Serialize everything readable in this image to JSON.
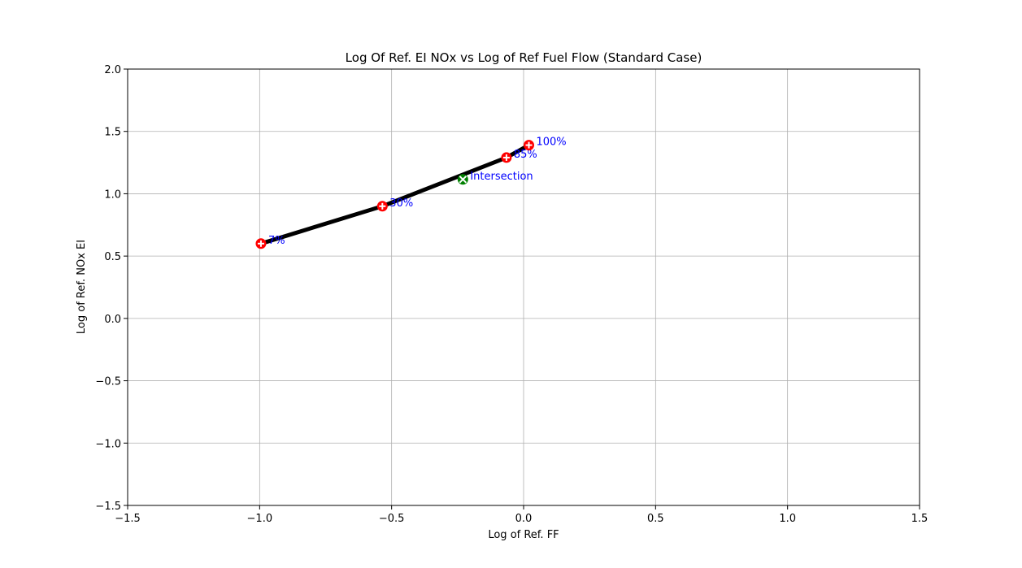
{
  "chart_data": {
    "type": "line",
    "title": "Log Of Ref. EI NOx vs Log of Ref Fuel Flow (Standard Case)",
    "xlabel": "Log of Ref. FF",
    "ylabel": "Log of Ref. NOx EI",
    "xlim": [
      -1.5,
      1.5
    ],
    "ylim": [
      -1.5,
      2.0
    ],
    "xticks": [
      -1.5,
      -1.0,
      -0.5,
      0.0,
      0.5,
      1.0,
      1.5
    ],
    "yticks": [
      -1.5,
      -1.0,
      -0.5,
      0.0,
      0.5,
      1.0,
      1.5,
      2.0
    ],
    "grid": true,
    "line_color": "#000000",
    "series": [
      {
        "x": [
          -0.995,
          -0.535,
          -0.065,
          0.02
        ],
        "y": [
          0.6,
          0.9,
          1.29,
          1.39
        ],
        "labels": [
          "7%",
          "30%",
          "85%",
          "100%"
        ],
        "marker_color": "#ff0000",
        "label_color": "#0000ff"
      }
    ],
    "annotations": [
      {
        "label": "Intersection",
        "x": -0.23,
        "y": 1.115,
        "marker_color": "#008000",
        "label_color": "#0000ff"
      }
    ]
  }
}
